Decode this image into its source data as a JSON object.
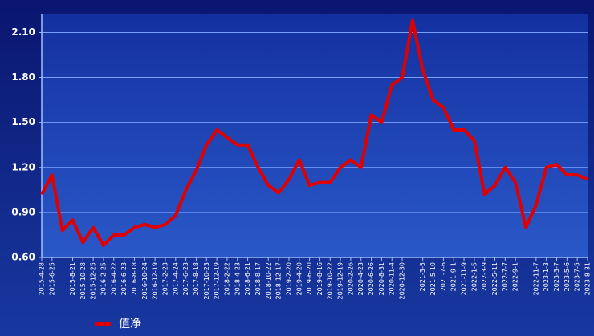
{
  "chart_data": {
    "type": "line",
    "categories": [
      "2015-4-28",
      "2015-6-25",
      null,
      "2015-8-21",
      "2015-10-28",
      "2015-12-25",
      "2016-2-25",
      "2016-4-22",
      "2016-6-23",
      "2016-8-18",
      "2016-10-24",
      "2016-12-19",
      "2017-2-23",
      "2017-4-24",
      "2017-6-23",
      "2017-8-18",
      "2017-10-23",
      "2017-12-19",
      "2018-2-22",
      "2018-4-23",
      "2018-6-21",
      "2018-8-17",
      "2018-10-22",
      "2018-12-17",
      "2019-2-20",
      "2019-4-20",
      "2019-6-20",
      "2019-8-16",
      "2019-10-22",
      "2019-12-19",
      "2020-2-26",
      "2020-4-23",
      "2020-6-26",
      "2020-8-31",
      "2020-11-4",
      "2020-12-30",
      null,
      "2021-3-5",
      "2021-5-10",
      "2021-7-6",
      "2021-9-1",
      "2021-11-9",
      "2022-1-5",
      "2022-3-9",
      "2022-5-11",
      "2022-7-7",
      "2022-9-1",
      null,
      "2022-11-7",
      "2023-1-3",
      "2023-3-7",
      "2023-5-6",
      "2023-7-5",
      "2023-8-31"
    ],
    "series": [
      {
        "name": "值净",
        "color": "#e00000",
        "values": [
          1.02,
          1.15,
          0.78,
          0.85,
          0.7,
          0.8,
          0.68,
          0.75,
          0.75,
          0.8,
          0.82,
          0.8,
          0.82,
          0.88,
          1.05,
          1.18,
          1.35,
          1.45,
          1.4,
          1.35,
          1.35,
          1.2,
          1.08,
          1.03,
          1.12,
          1.25,
          1.08,
          1.1,
          1.1,
          1.2,
          1.25,
          1.2,
          1.55,
          1.5,
          1.75,
          1.8,
          2.18,
          1.85,
          1.65,
          1.6,
          1.45,
          1.45,
          1.38,
          1.02,
          1.08,
          1.2,
          1.1,
          0.8,
          0.95,
          1.2,
          1.22,
          1.15,
          1.15,
          1.12
        ]
      }
    ],
    "ylim": [
      0.6,
      2.22
    ],
    "yticks": [
      {
        "value": 0.6,
        "label": "0.60"
      },
      {
        "value": 0.9,
        "label": "0.90"
      },
      {
        "value": 1.2,
        "label": "1.20"
      },
      {
        "value": 1.5,
        "label": "1.50"
      },
      {
        "value": 1.8,
        "label": "1.80"
      },
      {
        "value": 2.1,
        "label": "2.10"
      }
    ],
    "grid": true
  }
}
